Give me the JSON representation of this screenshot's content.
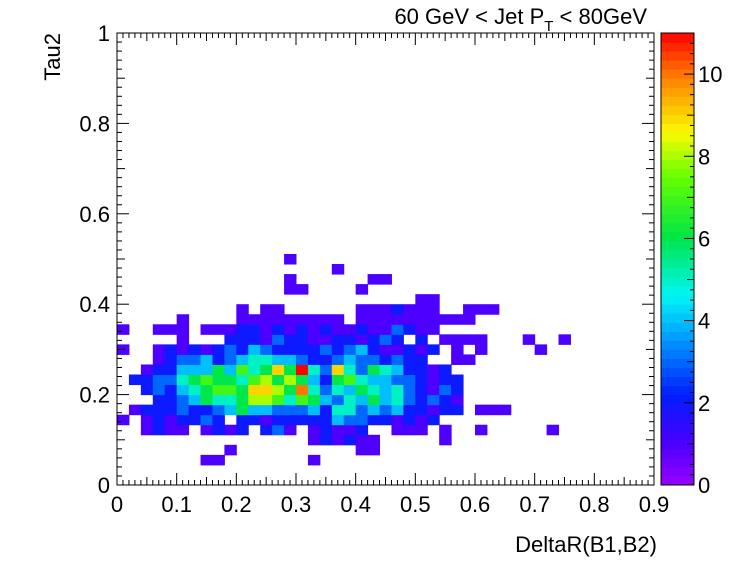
{
  "chart_data": {
    "type": "heatmap",
    "title": {
      "prefix": "60 GeV < Jet P",
      "subscript": "T",
      "suffix": " < 80GeV"
    },
    "xlabel": "DeltaR(B1,B2)",
    "ylabel": "Tau2",
    "xlim": [
      0,
      0.9
    ],
    "ylim": [
      0,
      1
    ],
    "x_ticks": [
      "0",
      "0.1",
      "0.2",
      "0.3",
      "0.4",
      "0.5",
      "0.6",
      "0.7",
      "0.8",
      "0.9"
    ],
    "y_ticks": [
      "0",
      "0.2",
      "0.4",
      "0.6",
      "0.8",
      "1"
    ],
    "z_ticks": [
      "0",
      "2",
      "4",
      "6",
      "8",
      "10"
    ],
    "zlim": [
      0,
      11
    ],
    "bins_x": 45,
    "bins_y": 45,
    "cells": [
      [
        7,
        2,
        1
      ],
      [
        8,
        2,
        1
      ],
      [
        9,
        3,
        1
      ],
      [
        16,
        2,
        1
      ],
      [
        20,
        3,
        1
      ],
      [
        21,
        3,
        1
      ],
      [
        27,
        4,
        1
      ],
      [
        9,
        5,
        1
      ],
      [
        16,
        5,
        1
      ],
      [
        16,
        4,
        1
      ],
      [
        17,
        4,
        2
      ],
      [
        18,
        4,
        1
      ],
      [
        19,
        4,
        2
      ],
      [
        20,
        4,
        1
      ],
      [
        21,
        4,
        1
      ],
      [
        2,
        5,
        1
      ],
      [
        3,
        5,
        2
      ],
      [
        4,
        5,
        1
      ],
      [
        5,
        5,
        1
      ],
      [
        7,
        5,
        1
      ],
      [
        8,
        5,
        2
      ],
      [
        10,
        5,
        2
      ],
      [
        12,
        5,
        2
      ],
      [
        13,
        5,
        3
      ],
      [
        14,
        5,
        1
      ],
      [
        17,
        5,
        2
      ],
      [
        18,
        5,
        1
      ],
      [
        19,
        5,
        1
      ],
      [
        20,
        5,
        2
      ],
      [
        23,
        5,
        1
      ],
      [
        24,
        5,
        1
      ],
      [
        25,
        5,
        1
      ],
      [
        27,
        5,
        1
      ],
      [
        30,
        5,
        1
      ],
      [
        36,
        5,
        1
      ],
      [
        0,
        6,
        1
      ],
      [
        2,
        6,
        1
      ],
      [
        3,
        6,
        2
      ],
      [
        4,
        6,
        1
      ],
      [
        5,
        6,
        2
      ],
      [
        6,
        6,
        2
      ],
      [
        7,
        6,
        3
      ],
      [
        8,
        6,
        2
      ],
      [
        10,
        6,
        2
      ],
      [
        11,
        6,
        2
      ],
      [
        12,
        6,
        1
      ],
      [
        13,
        6,
        2
      ],
      [
        14,
        6,
        2
      ],
      [
        15,
        6,
        2
      ],
      [
        16,
        6,
        2
      ],
      [
        17,
        6,
        2
      ],
      [
        18,
        6,
        4
      ],
      [
        19,
        6,
        3
      ],
      [
        20,
        6,
        3
      ],
      [
        21,
        6,
        2
      ],
      [
        22,
        6,
        2
      ],
      [
        23,
        6,
        1
      ],
      [
        24,
        6,
        2
      ],
      [
        25,
        6,
        1
      ],
      [
        26,
        6,
        2
      ],
      [
        1,
        7,
        1
      ],
      [
        2,
        7,
        2
      ],
      [
        3,
        7,
        2
      ],
      [
        4,
        7,
        2
      ],
      [
        5,
        7,
        3
      ],
      [
        6,
        7,
        2
      ],
      [
        7,
        7,
        2
      ],
      [
        8,
        7,
        3
      ],
      [
        9,
        7,
        4
      ],
      [
        10,
        7,
        6
      ],
      [
        11,
        7,
        4
      ],
      [
        12,
        7,
        4
      ],
      [
        13,
        7,
        3
      ],
      [
        14,
        7,
        3
      ],
      [
        15,
        7,
        3
      ],
      [
        16,
        7,
        4
      ],
      [
        17,
        7,
        2
      ],
      [
        18,
        7,
        5
      ],
      [
        19,
        7,
        5
      ],
      [
        20,
        7,
        3
      ],
      [
        21,
        7,
        4
      ],
      [
        22,
        7,
        3
      ],
      [
        23,
        7,
        4
      ],
      [
        24,
        7,
        2
      ],
      [
        25,
        7,
        2
      ],
      [
        26,
        7,
        1
      ],
      [
        27,
        7,
        2
      ],
      [
        28,
        7,
        2
      ],
      [
        30,
        7,
        1
      ],
      [
        31,
        7,
        1
      ],
      [
        32,
        7,
        1
      ],
      [
        3,
        8,
        2
      ],
      [
        4,
        8,
        2
      ],
      [
        5,
        8,
        3
      ],
      [
        6,
        8,
        4
      ],
      [
        7,
        8,
        6
      ],
      [
        8,
        8,
        5
      ],
      [
        9,
        8,
        5
      ],
      [
        10,
        8,
        6
      ],
      [
        11,
        8,
        8
      ],
      [
        12,
        8,
        8
      ],
      [
        13,
        8,
        7
      ],
      [
        14,
        8,
        5
      ],
      [
        15,
        8,
        7
      ],
      [
        16,
        8,
        6
      ],
      [
        17,
        8,
        4
      ],
      [
        18,
        8,
        3
      ],
      [
        19,
        8,
        5
      ],
      [
        20,
        8,
        4
      ],
      [
        21,
        8,
        6
      ],
      [
        22,
        8,
        4
      ],
      [
        23,
        8,
        5
      ],
      [
        24,
        8,
        3
      ],
      [
        25,
        8,
        2
      ],
      [
        26,
        8,
        3
      ],
      [
        27,
        8,
        2
      ],
      [
        28,
        8,
        1
      ],
      [
        2,
        9,
        2
      ],
      [
        3,
        9,
        3
      ],
      [
        4,
        9,
        2
      ],
      [
        5,
        9,
        4
      ],
      [
        6,
        9,
        5
      ],
      [
        7,
        9,
        6
      ],
      [
        8,
        9,
        7
      ],
      [
        9,
        9,
        7
      ],
      [
        10,
        9,
        6
      ],
      [
        11,
        9,
        9
      ],
      [
        12,
        9,
        9
      ],
      [
        13,
        9,
        8
      ],
      [
        14,
        9,
        6
      ],
      [
        15,
        9,
        10
      ],
      [
        16,
        9,
        5
      ],
      [
        17,
        9,
        3
      ],
      [
        18,
        9,
        5
      ],
      [
        19,
        9,
        4
      ],
      [
        20,
        9,
        6
      ],
      [
        21,
        9,
        5
      ],
      [
        22,
        9,
        4
      ],
      [
        23,
        9,
        5
      ],
      [
        24,
        9,
        3
      ],
      [
        25,
        9,
        2
      ],
      [
        26,
        9,
        1
      ],
      [
        27,
        9,
        3
      ],
      [
        28,
        9,
        2
      ],
      [
        1,
        10,
        2
      ],
      [
        2,
        10,
        2
      ],
      [
        3,
        10,
        3
      ],
      [
        4,
        10,
        3
      ],
      [
        5,
        10,
        5
      ],
      [
        6,
        10,
        6
      ],
      [
        7,
        10,
        7
      ],
      [
        8,
        10,
        6
      ],
      [
        9,
        10,
        6
      ],
      [
        10,
        10,
        5
      ],
      [
        11,
        10,
        7
      ],
      [
        12,
        10,
        8
      ],
      [
        13,
        10,
        6
      ],
      [
        14,
        10,
        8
      ],
      [
        15,
        10,
        6
      ],
      [
        16,
        10,
        4
      ],
      [
        17,
        10,
        2
      ],
      [
        18,
        10,
        6
      ],
      [
        19,
        10,
        7
      ],
      [
        20,
        10,
        5
      ],
      [
        21,
        10,
        4
      ],
      [
        22,
        10,
        4
      ],
      [
        23,
        10,
        3
      ],
      [
        24,
        10,
        3
      ],
      [
        25,
        10,
        2
      ],
      [
        26,
        10,
        1
      ],
      [
        27,
        10,
        2
      ],
      [
        28,
        10,
        2
      ],
      [
        2,
        11,
        1
      ],
      [
        3,
        11,
        2
      ],
      [
        4,
        11,
        2
      ],
      [
        5,
        11,
        4
      ],
      [
        6,
        11,
        4
      ],
      [
        7,
        11,
        4
      ],
      [
        8,
        11,
        6
      ],
      [
        9,
        11,
        4
      ],
      [
        10,
        11,
        7
      ],
      [
        11,
        11,
        5
      ],
      [
        12,
        11,
        6
      ],
      [
        13,
        11,
        9
      ],
      [
        14,
        11,
        6
      ],
      [
        15,
        11,
        11
      ],
      [
        16,
        11,
        5
      ],
      [
        17,
        11,
        3
      ],
      [
        18,
        11,
        9
      ],
      [
        19,
        11,
        5
      ],
      [
        20,
        11,
        3
      ],
      [
        21,
        11,
        6
      ],
      [
        22,
        11,
        5
      ],
      [
        23,
        11,
        4
      ],
      [
        24,
        11,
        2
      ],
      [
        25,
        11,
        2
      ],
      [
        26,
        11,
        1
      ],
      [
        27,
        11,
        2
      ],
      [
        3,
        12,
        1
      ],
      [
        4,
        12,
        2
      ],
      [
        5,
        12,
        3
      ],
      [
        6,
        12,
        3
      ],
      [
        7,
        12,
        4
      ],
      [
        8,
        12,
        2
      ],
      [
        9,
        12,
        3
      ],
      [
        10,
        12,
        4
      ],
      [
        11,
        12,
        5
      ],
      [
        12,
        12,
        5
      ],
      [
        13,
        12,
        4
      ],
      [
        14,
        12,
        4
      ],
      [
        15,
        12,
        3
      ],
      [
        16,
        12,
        2
      ],
      [
        17,
        12,
        2
      ],
      [
        18,
        12,
        3
      ],
      [
        19,
        12,
        4
      ],
      [
        20,
        12,
        3
      ],
      [
        21,
        12,
        3
      ],
      [
        22,
        12,
        2
      ],
      [
        23,
        12,
        3
      ],
      [
        24,
        12,
        2
      ],
      [
        25,
        12,
        2
      ],
      [
        28,
        12,
        1
      ],
      [
        29,
        12,
        1
      ],
      [
        0,
        13,
        1
      ],
      [
        3,
        13,
        1
      ],
      [
        4,
        13,
        2
      ],
      [
        5,
        13,
        1
      ],
      [
        6,
        13,
        2
      ],
      [
        7,
        13,
        1
      ],
      [
        8,
        13,
        2
      ],
      [
        9,
        13,
        3
      ],
      [
        10,
        13,
        2
      ],
      [
        11,
        13,
        4
      ],
      [
        12,
        13,
        3
      ],
      [
        13,
        13,
        2
      ],
      [
        14,
        13,
        2
      ],
      [
        15,
        13,
        2
      ],
      [
        16,
        13,
        2
      ],
      [
        17,
        13,
        3
      ],
      [
        18,
        13,
        2
      ],
      [
        19,
        13,
        3
      ],
      [
        20,
        13,
        4
      ],
      [
        21,
        13,
        2
      ],
      [
        22,
        13,
        1
      ],
      [
        23,
        13,
        1
      ],
      [
        24,
        13,
        2
      ],
      [
        25,
        13,
        1
      ],
      [
        26,
        13,
        2
      ],
      [
        28,
        13,
        1
      ],
      [
        30,
        13,
        1
      ],
      [
        35,
        13,
        1
      ],
      [
        5,
        14,
        1
      ],
      [
        9,
        14,
        2
      ],
      [
        10,
        14,
        2
      ],
      [
        11,
        14,
        2
      ],
      [
        12,
        14,
        1
      ],
      [
        13,
        14,
        3
      ],
      [
        14,
        14,
        2
      ],
      [
        15,
        14,
        2
      ],
      [
        16,
        14,
        1
      ],
      [
        17,
        14,
        1
      ],
      [
        18,
        14,
        2
      ],
      [
        19,
        14,
        2
      ],
      [
        20,
        14,
        1
      ],
      [
        21,
        14,
        2
      ],
      [
        22,
        14,
        3
      ],
      [
        23,
        14,
        2
      ],
      [
        25,
        14,
        2
      ],
      [
        27,
        14,
        1
      ],
      [
        28,
        14,
        1
      ],
      [
        29,
        14,
        1
      ],
      [
        30,
        14,
        1
      ],
      [
        34,
        14,
        1
      ],
      [
        37,
        14,
        1
      ],
      [
        0,
        15,
        1
      ],
      [
        3,
        15,
        1
      ],
      [
        4,
        15,
        1
      ],
      [
        5,
        15,
        1
      ],
      [
        7,
        15,
        1
      ],
      [
        8,
        15,
        1
      ],
      [
        9,
        15,
        1
      ],
      [
        10,
        15,
        2
      ],
      [
        11,
        15,
        2
      ],
      [
        12,
        15,
        1
      ],
      [
        13,
        15,
        2
      ],
      [
        14,
        15,
        1
      ],
      [
        15,
        15,
        2
      ],
      [
        16,
        15,
        1
      ],
      [
        17,
        15,
        2
      ],
      [
        18,
        15,
        1
      ],
      [
        19,
        15,
        1
      ],
      [
        20,
        15,
        2
      ],
      [
        21,
        15,
        1
      ],
      [
        22,
        15,
        1
      ],
      [
        23,
        15,
        3
      ],
      [
        24,
        15,
        2
      ],
      [
        25,
        15,
        1
      ],
      [
        26,
        15,
        1
      ],
      [
        5,
        16,
        1
      ],
      [
        10,
        16,
        1
      ],
      [
        11,
        16,
        1
      ],
      [
        12,
        16,
        1
      ],
      [
        13,
        16,
        1
      ],
      [
        14,
        16,
        1
      ],
      [
        15,
        16,
        1
      ],
      [
        16,
        16,
        1
      ],
      [
        17,
        16,
        1
      ],
      [
        18,
        16,
        1
      ],
      [
        20,
        16,
        1
      ],
      [
        21,
        16,
        1
      ],
      [
        22,
        16,
        1
      ],
      [
        23,
        16,
        1
      ],
      [
        24,
        16,
        1
      ],
      [
        25,
        16,
        1
      ],
      [
        26,
        16,
        1
      ],
      [
        27,
        16,
        1
      ],
      [
        28,
        16,
        1
      ],
      [
        29,
        16,
        1
      ],
      [
        10,
        17,
        1
      ],
      [
        12,
        17,
        1
      ],
      [
        13,
        17,
        1
      ],
      [
        20,
        17,
        1
      ],
      [
        21,
        17,
        1
      ],
      [
        22,
        17,
        1
      ],
      [
        23,
        17,
        2
      ],
      [
        24,
        17,
        1
      ],
      [
        25,
        17,
        1
      ],
      [
        26,
        17,
        1
      ],
      [
        29,
        17,
        1
      ],
      [
        30,
        17,
        1
      ],
      [
        31,
        17,
        1
      ],
      [
        14,
        19,
        1
      ],
      [
        15,
        19,
        1
      ],
      [
        20,
        19,
        1
      ],
      [
        25,
        18,
        1
      ],
      [
        26,
        18,
        1
      ],
      [
        14,
        20,
        1
      ],
      [
        21,
        20,
        1
      ],
      [
        22,
        20,
        1
      ],
      [
        18,
        21,
        1
      ],
      [
        14,
        22,
        1
      ]
    ]
  }
}
